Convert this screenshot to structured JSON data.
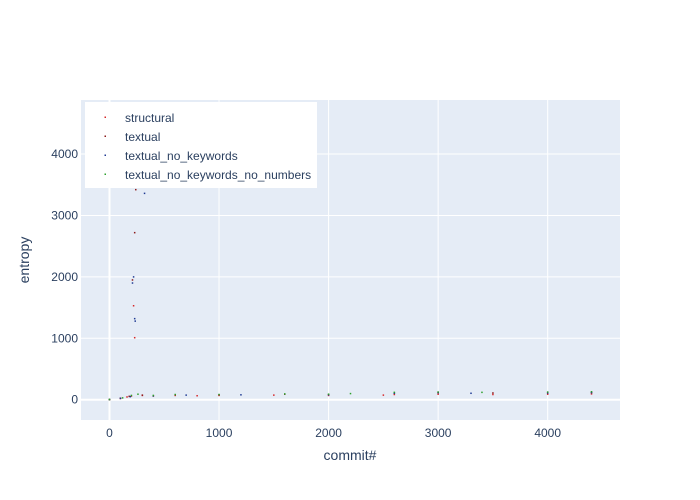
{
  "chart_data": {
    "type": "scatter",
    "xlabel": "commit#",
    "ylabel": "entropy",
    "xlim": [
      -260,
      4660
    ],
    "ylim": [
      -330,
      4880
    ],
    "x_ticks": [
      0,
      1000,
      2000,
      3000,
      4000
    ],
    "y_ticks": [
      0,
      1000,
      2000,
      3000,
      4000
    ],
    "x_tick_labels": [
      "0",
      "1000",
      "2000",
      "3000",
      "4000"
    ],
    "y_tick_labels": [
      "0",
      "1000",
      "2000",
      "3000",
      "4000"
    ],
    "grid": true,
    "legend_position": "top-left",
    "series": [
      {
        "name": "structural",
        "color": "#d62728",
        "points": [
          [
            0,
            0
          ],
          [
            100,
            20
          ],
          [
            160,
            45
          ],
          [
            200,
            60
          ],
          [
            220,
            1530
          ],
          [
            230,
            1010
          ],
          [
            300,
            70
          ],
          [
            400,
            60
          ],
          [
            600,
            70
          ],
          [
            800,
            65
          ],
          [
            1000,
            70
          ],
          [
            1500,
            75
          ],
          [
            2000,
            70
          ],
          [
            2500,
            75
          ],
          [
            2600,
            85
          ],
          [
            3000,
            90
          ],
          [
            3500,
            85
          ],
          [
            4000,
            90
          ],
          [
            4400,
            95
          ]
        ]
      },
      {
        "name": "textual",
        "color": "#8b1a1a",
        "points": [
          [
            0,
            5
          ],
          [
            100,
            25
          ],
          [
            180,
            55
          ],
          [
            210,
            1950
          ],
          [
            230,
            2720
          ],
          [
            240,
            3420
          ],
          [
            300,
            75
          ],
          [
            400,
            65
          ],
          [
            600,
            80
          ],
          [
            1000,
            80
          ],
          [
            1600,
            90
          ],
          [
            2000,
            85
          ],
          [
            2600,
            110
          ],
          [
            3000,
            120
          ],
          [
            3500,
            110
          ],
          [
            4000,
            115
          ],
          [
            4400,
            120
          ]
        ]
      },
      {
        "name": "textual_no_keywords",
        "color": "#1f3a93",
        "points": [
          [
            0,
            3
          ],
          [
            100,
            22
          ],
          [
            190,
            50
          ],
          [
            210,
            1900
          ],
          [
            220,
            2000
          ],
          [
            230,
            1320
          ],
          [
            235,
            1280
          ],
          [
            320,
            3360
          ],
          [
            400,
            62
          ],
          [
            700,
            75
          ],
          [
            1200,
            80
          ],
          [
            2000,
            80
          ],
          [
            2600,
            105
          ],
          [
            3000,
            115
          ],
          [
            3300,
            105
          ],
          [
            4000,
            110
          ],
          [
            4400,
            115
          ]
        ]
      },
      {
        "name": "textual_no_keywords_no_numbers",
        "color": "#2ca02c",
        "points": [
          [
            0,
            4
          ],
          [
            120,
            30
          ],
          [
            200,
            70
          ],
          [
            260,
            90
          ],
          [
            400,
            70
          ],
          [
            600,
            85
          ],
          [
            1000,
            85
          ],
          [
            1600,
            95
          ],
          [
            2000,
            90
          ],
          [
            2200,
            100
          ],
          [
            2600,
            120
          ],
          [
            3000,
            125
          ],
          [
            3400,
            120
          ],
          [
            4000,
            125
          ],
          [
            4400,
            130
          ]
        ]
      }
    ]
  }
}
